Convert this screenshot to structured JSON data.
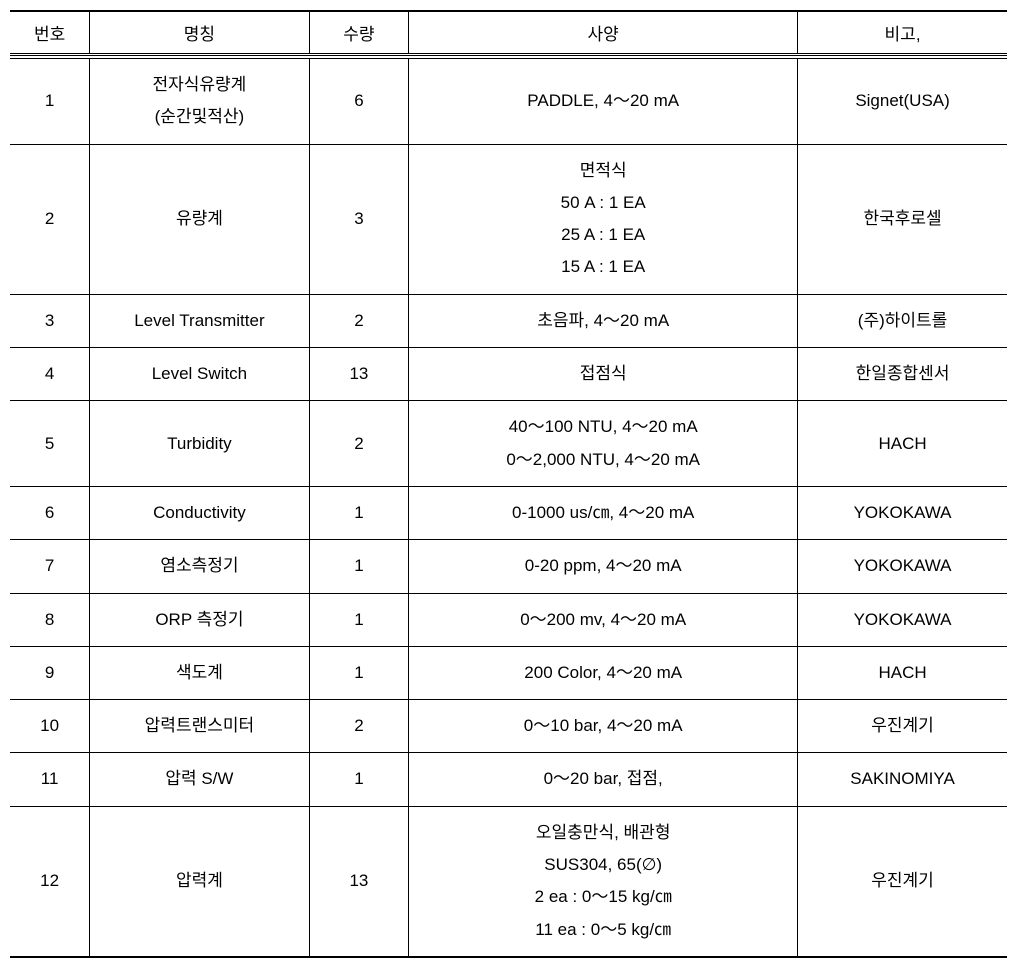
{
  "table": {
    "headers": {
      "num": "번호",
      "name": "명칭",
      "qty": "수량",
      "spec": "사양",
      "note": "비고,"
    },
    "rows": [
      {
        "num": "1",
        "name": "전자식유량계\n(순간및적산)",
        "qty": "6",
        "spec": "PADDLE,  4～20 mA",
        "note": "Signet(USA)"
      },
      {
        "num": "2",
        "name": "유량계",
        "qty": "3",
        "spec": "면적식\n50 A : 1 EA\n25 A : 1 EA\n15 A : 1 EA",
        "note": "한국후로셀"
      },
      {
        "num": "3",
        "name": "Level Transmitter",
        "qty": "2",
        "spec": "초음파, 4～20 mA",
        "note": "(주)하이트롤"
      },
      {
        "num": "4",
        "name": "Level Switch",
        "qty": "13",
        "spec": "접점식",
        "note": "한일종합센서"
      },
      {
        "num": "5",
        "name": "Turbidity",
        "qty": "2",
        "spec": "40～100 NTU, 4～20 mA\n0～2,000 NTU, 4～20 mA",
        "note": "HACH"
      },
      {
        "num": "6",
        "name": "Conductivity",
        "qty": "1",
        "spec": "0-1000 us/㎝, 4～20 mA",
        "note": "YOKOKAWA"
      },
      {
        "num": "7",
        "name": "염소측정기",
        "qty": "1",
        "spec": "0-20 ppm, 4～20 mA",
        "note": "YOKOKAWA"
      },
      {
        "num": "8",
        "name": "ORP 측정기",
        "qty": "1",
        "spec": "0～200 mv, 4～20 mA",
        "note": "YOKOKAWA"
      },
      {
        "num": "9",
        "name": "색도계",
        "qty": "1",
        "spec": "200 Color, 4～20 mA",
        "note": "HACH"
      },
      {
        "num": "10",
        "name": "압력트랜스미터",
        "qty": "2",
        "spec": "0～10 bar, 4～20 mA",
        "note": "우진계기"
      },
      {
        "num": "11",
        "name": "압력 S/W",
        "qty": "1",
        "spec": "0～20 bar, 접점,",
        "note": "SAKINOMIYA"
      },
      {
        "num": "12",
        "name": "압력계",
        "qty": "13",
        "spec": "오일충만식, 배관형\nSUS304, 65(∅)\n2 ea : 0～15 kg/㎝\n11 ea : 0～5 kg/㎝",
        "note": "우진계기"
      }
    ],
    "styling": {
      "border_color": "#000000",
      "background_color": "#ffffff",
      "font_size": 17,
      "header_border_top_width": 2,
      "header_border_bottom_style": "double",
      "row_border_width": 1,
      "last_row_border_bottom_width": 2,
      "cell_padding_vertical": 10,
      "cell_padding_horizontal": 6,
      "text_align": "center",
      "line_height": 1.9,
      "column_widths_pct": [
        8,
        22,
        10,
        39,
        21
      ]
    }
  }
}
